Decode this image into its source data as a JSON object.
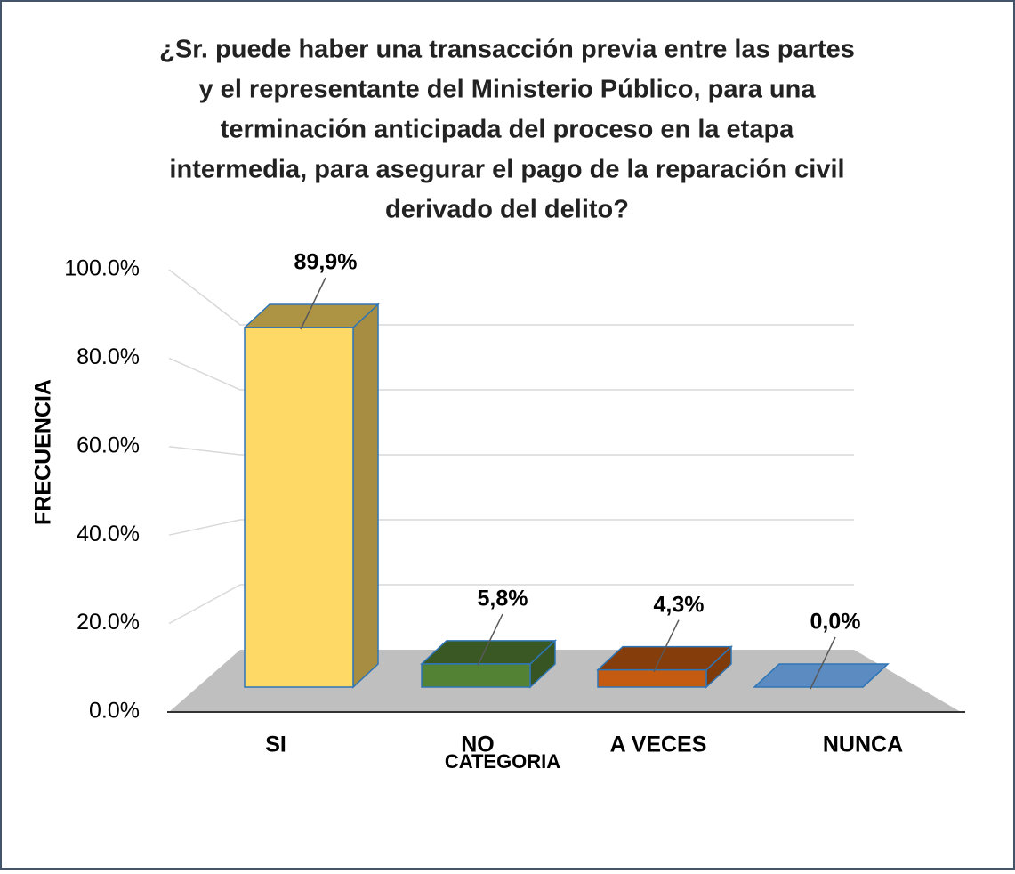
{
  "chart_data": {
    "type": "bar3d",
    "title": [
      "¿Sr. puede haber una transacción previa entre las partes",
      "y el representante del Ministerio Público, para una",
      "terminación anticipada del proceso en la etapa",
      "intermedia, para asegurar el pago de la reparación civil",
      "derivado del delito?"
    ],
    "y_label": "FRECUENCIA",
    "x_label": "CATEGORIA",
    "categories": [
      "SI",
      "NO",
      "A VECES",
      "NUNCA"
    ],
    "values": [
      89.9,
      5.8,
      4.3,
      0.0
    ],
    "value_labels": [
      "89,9%",
      "5,8%",
      "4,3%",
      "0,0%"
    ],
    "colors": [
      "#ffd966",
      "#548235",
      "#c55a11",
      "#5b8bc0"
    ],
    "ylim": [
      0,
      100
    ],
    "yticks": [
      {
        "value": 0,
        "label": "0.0%"
      },
      {
        "value": 20,
        "label": "20.0%"
      },
      {
        "value": 40,
        "label": "40.0%"
      },
      {
        "value": 60,
        "label": "60.0%"
      },
      {
        "value": 80,
        "label": "80.0%"
      },
      {
        "value": 100,
        "label": "100.0%"
      }
    ],
    "grid": true
  }
}
